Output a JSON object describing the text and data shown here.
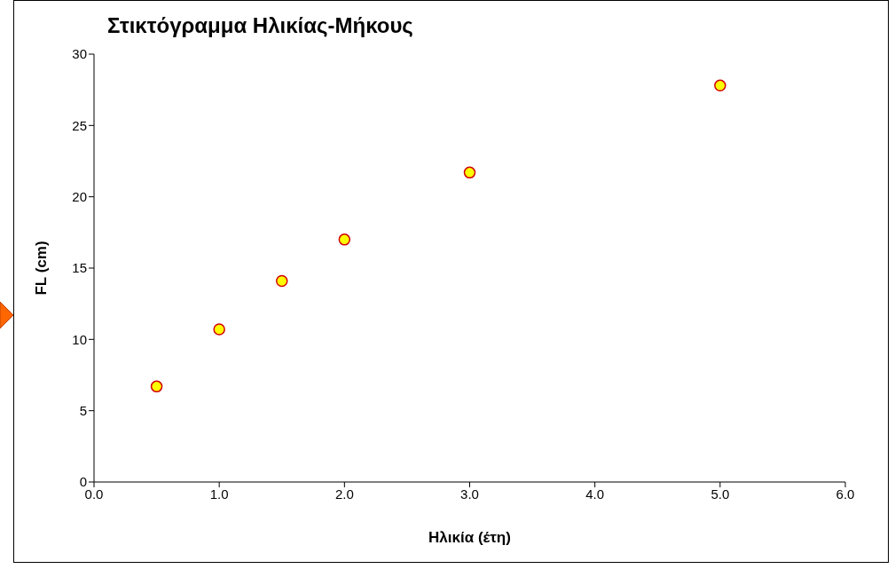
{
  "chart_data": {
    "type": "scatter",
    "title": "Στικτόγραμμα Ηλικίας-Μήκους",
    "xlabel": "Ηλικία (έτη)",
    "ylabel": "FL (cm)",
    "x": [
      0.5,
      1.0,
      1.5,
      2.0,
      3.0,
      5.0
    ],
    "series": [
      {
        "color": "#ffff00",
        "values": [
          6.7,
          10.7,
          14.1,
          17.0,
          21.7,
          27.8
        ]
      }
    ],
    "xlim": [
      0,
      6
    ],
    "xticks": [
      {
        "value": 0,
        "label": "0.0"
      },
      {
        "value": 1,
        "label": "1.0"
      },
      {
        "value": 2,
        "label": "2.0"
      },
      {
        "value": 3,
        "label": "3.0"
      },
      {
        "value": 4,
        "label": "4.0"
      },
      {
        "value": 5,
        "label": "5.0"
      },
      {
        "value": 6,
        "label": "6.0"
      }
    ],
    "ylim": [
      0,
      30
    ],
    "yticks": [
      0,
      5,
      10,
      15,
      20,
      25,
      30
    ],
    "grid": false,
    "legend": false,
    "marker": "circle"
  }
}
